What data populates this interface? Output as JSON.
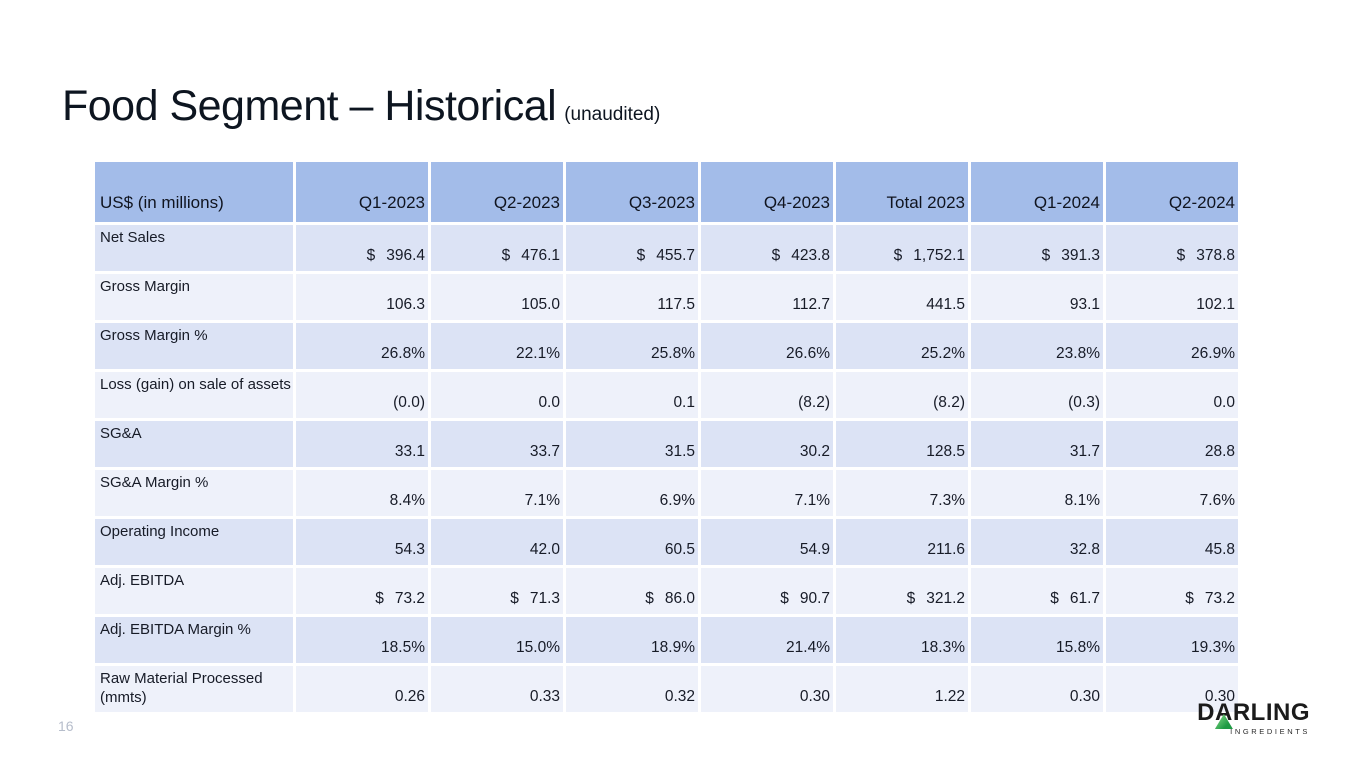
{
  "slide": {
    "title": "Food Segment – Historical",
    "title_suffix": "(unaudited)",
    "page_number": "16"
  },
  "table": {
    "currency_symbol": "$",
    "columns": [
      "US$ (in millions)",
      "Q1-2023",
      "Q2-2023",
      "Q3-2023",
      "Q4-2023",
      "Total 2023",
      "Q1-2024",
      "Q2-2024"
    ],
    "rows": [
      {
        "label": "Net Sales",
        "dollar": true,
        "values": [
          "396.4",
          "476.1",
          "455.7",
          "423.8",
          "1,752.1",
          "391.3",
          "378.8"
        ]
      },
      {
        "label": "Gross Margin",
        "dollar": false,
        "values": [
          "106.3",
          "105.0",
          "117.5",
          "112.7",
          "441.5",
          "93.1",
          "102.1"
        ]
      },
      {
        "label": "Gross Margin %",
        "dollar": false,
        "values": [
          "26.8%",
          "22.1%",
          "25.8%",
          "26.6%",
          "25.2%",
          "23.8%",
          "26.9%"
        ]
      },
      {
        "label": "Loss (gain) on sale of assets",
        "dollar": false,
        "values": [
          "(0.0)",
          "0.0",
          "0.1",
          "(8.2)",
          "(8.2)",
          "(0.3)",
          "0.0"
        ]
      },
      {
        "label": "SG&A",
        "dollar": false,
        "values": [
          "33.1",
          "33.7",
          "31.5",
          "30.2",
          "128.5",
          "31.7",
          "28.8"
        ]
      },
      {
        "label": "SG&A Margin %",
        "dollar": false,
        "values": [
          "8.4%",
          "7.1%",
          "6.9%",
          "7.1%",
          "7.3%",
          "8.1%",
          "7.6%"
        ]
      },
      {
        "label": "Operating Income",
        "dollar": false,
        "values": [
          "54.3",
          "42.0",
          "60.5",
          "54.9",
          "211.6",
          "32.8",
          "45.8"
        ]
      },
      {
        "label": "Adj. EBITDA",
        "dollar": true,
        "values": [
          "73.2",
          "71.3",
          "86.0",
          "90.7",
          "321.2",
          "61.7",
          "73.2"
        ]
      },
      {
        "label": "Adj. EBITDA Margin %",
        "dollar": false,
        "values": [
          "18.5%",
          "15.0%",
          "18.9%",
          "21.4%",
          "18.3%",
          "15.8%",
          "19.3%"
        ]
      },
      {
        "label": "Raw Material Processed (mmts)",
        "dollar": false,
        "values": [
          "0.26",
          "0.33",
          "0.32",
          "0.30",
          "1.22",
          "0.30",
          "0.30"
        ]
      }
    ]
  },
  "logo": {
    "word_pre": "D",
    "word_a": "A",
    "word_post": "RLING",
    "sub": "INGREDIENTS"
  },
  "colors": {
    "header_bg": "#a3bce9",
    "row_dark": "#dce3f5",
    "row_light": "#eef1fa",
    "text": "#151a26",
    "page_num": "#b6bdcb",
    "logo_green": "#1f9a44"
  }
}
